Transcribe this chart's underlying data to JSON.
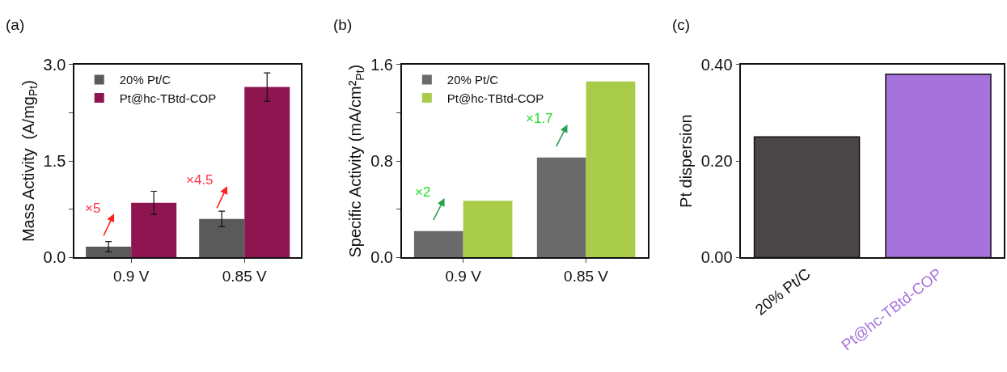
{
  "chart_data": [
    {
      "type": "bar",
      "title": "(a)",
      "ylabel": "Mass Activity  (A/mg$_{Pt}$)",
      "categories": [
        "0.9 V",
        "0.85 V"
      ],
      "series": [
        {
          "name": "20% Pt/C",
          "color": "#5a5a5a",
          "values": [
            0.17,
            0.6
          ],
          "errors": [
            0.08,
            0.12
          ]
        },
        {
          "name": "Pt@hc-TBtd-COP",
          "color": "#8e1550",
          "values": [
            0.85,
            2.65
          ],
          "errors": [
            0.18,
            0.22
          ]
        }
      ],
      "annotations": [
        "×5",
        "×4.5"
      ],
      "ylim": [
        0,
        3.0
      ],
      "yticks": [
        {
          "value": 0,
          "label": "0.0"
        },
        {
          "value": 0.75,
          "label": null
        },
        1.5,
        {
          "value": 2.25,
          "label": null
        },
        {
          "value": 3,
          "label": "3.0"
        }
      ],
      "legend": "top left"
    },
    {
      "type": "bar",
      "title": "(b)",
      "ylabel": "Specific Activity (mA/cm²$_{Pt}$)",
      "categories": [
        "0.9 V",
        "0.85 V"
      ],
      "series": [
        {
          "name": "20% Pt/C",
          "color": "#6a6a6a",
          "values": [
            0.22,
            0.83
          ]
        },
        {
          "name": "Pt@hc-TBtd-COP",
          "color": "#a8cc4a",
          "values": [
            0.47,
            1.46
          ]
        }
      ],
      "annotations": [
        "×2",
        "×1.7"
      ],
      "ylim": [
        0,
        1.6
      ],
      "yticks": [
        {
          "value": 0,
          "label": "0.0"
        },
        {
          "value": 0.4,
          "label": null
        },
        0.8,
        {
          "value": 1.2,
          "label": null
        },
        1.6
      ],
      "legend": "top left"
    },
    {
      "type": "bar",
      "title": "(c)",
      "ylabel": "Pt dispersion",
      "categories": [
        "20% Pt/C",
        "Pt@hc-TBtd-COP"
      ],
      "values": [
        0.25,
        0.38
      ],
      "colors": [
        "#4a4546",
        "#a673dc"
      ],
      "ylim": [
        0,
        0.4
      ],
      "yticks": [
        {
          "value": 0,
          "label": "0.00"
        },
        {
          "value": 0.2,
          "label": "0.20"
        },
        {
          "value": 0.4,
          "label": "0.40"
        }
      ]
    }
  ]
}
